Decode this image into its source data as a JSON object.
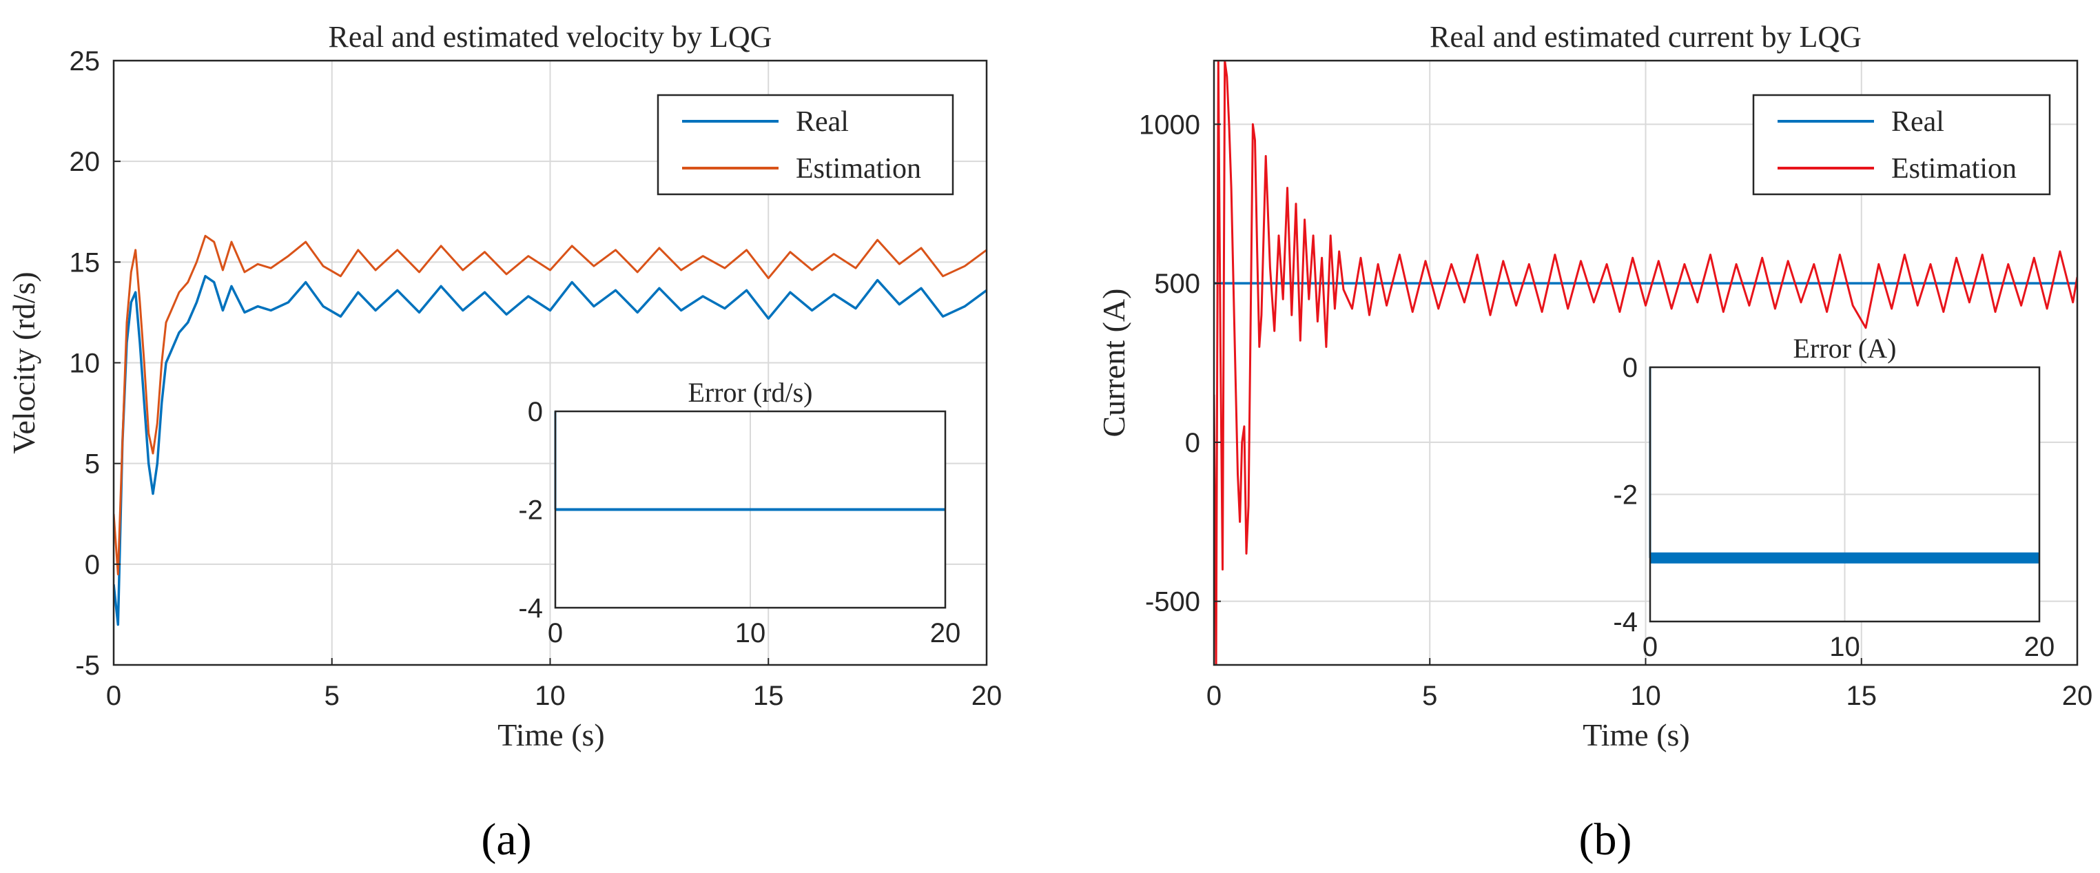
{
  "chart_data": [
    {
      "type": "line",
      "panel_label": "(a)",
      "title": "Real and estimated velocity by LQG",
      "xlabel": "Time (s)",
      "ylabel": "Velocity (rd/s)",
      "xlim": [
        0,
        20
      ],
      "ylim": [
        -5,
        25
      ],
      "xticks": [
        "0",
        "5",
        "10",
        "15",
        "20"
      ],
      "yticks": [
        "-5",
        "0",
        "5",
        "10",
        "15",
        "20",
        "25"
      ],
      "grid": true,
      "legend_position": "top-right",
      "series": [
        {
          "name": "Real",
          "color": "#0072BD",
          "x": [
            0,
            0.1,
            0.2,
            0.3,
            0.4,
            0.5,
            0.6,
            0.7,
            0.8,
            0.9,
            1.0,
            1.1,
            1.2,
            1.3,
            1.5,
            1.7,
            1.9,
            2.1,
            2.3,
            2.5,
            2.7,
            3.0,
            3.3,
            3.6,
            4.0,
            4.4,
            4.8,
            5.2,
            5.6,
            6.0,
            6.5,
            7.0,
            7.5,
            8.0,
            8.5,
            9.0,
            9.5,
            10.0,
            10.5,
            11.0,
            11.5,
            12.0,
            12.5,
            13.0,
            13.5,
            14.0,
            14.5,
            15.0,
            15.5,
            16.0,
            16.5,
            17.0,
            17.5,
            18.0,
            18.5,
            19.0,
            19.5,
            20.0
          ],
          "y": [
            -1,
            -3,
            6,
            11,
            13,
            13.5,
            11,
            8,
            5,
            3.5,
            5,
            8,
            10,
            10.5,
            11.5,
            12,
            13,
            14.3,
            14,
            12.6,
            13.8,
            12.5,
            12.8,
            12.6,
            13,
            14,
            12.8,
            12.3,
            13.5,
            12.6,
            13.6,
            12.5,
            13.8,
            12.6,
            13.5,
            12.4,
            13.3,
            12.6,
            14,
            12.8,
            13.6,
            12.5,
            13.7,
            12.6,
            13.3,
            12.7,
            13.6,
            12.2,
            13.5,
            12.6,
            13.4,
            12.7,
            14.1,
            12.9,
            13.7,
            12.3,
            12.8,
            13.6
          ]
        },
        {
          "name": "Estimation",
          "color": "#D95319",
          "x": [
            0,
            0.1,
            0.2,
            0.3,
            0.4,
            0.5,
            0.6,
            0.7,
            0.8,
            0.9,
            1.0,
            1.1,
            1.2,
            1.3,
            1.5,
            1.7,
            1.9,
            2.1,
            2.3,
            2.5,
            2.7,
            3.0,
            3.3,
            3.6,
            4.0,
            4.4,
            4.8,
            5.2,
            5.6,
            6.0,
            6.5,
            7.0,
            7.5,
            8.0,
            8.5,
            9.0,
            9.5,
            10.0,
            10.5,
            11.0,
            11.5,
            12.0,
            12.5,
            13.0,
            13.5,
            14.0,
            14.5,
            15.0,
            15.5,
            16.0,
            16.5,
            17.0,
            17.5,
            18.0,
            18.5,
            19.0,
            19.5,
            20.0
          ],
          "y": [
            2.5,
            -0.5,
            6,
            12,
            14.5,
            15.6,
            13,
            10,
            6.5,
            5.5,
            7,
            10,
            12,
            12.5,
            13.5,
            14,
            15,
            16.3,
            16,
            14.6,
            16,
            14.5,
            14.9,
            14.7,
            15.3,
            16,
            14.8,
            14.3,
            15.6,
            14.6,
            15.6,
            14.5,
            15.8,
            14.6,
            15.5,
            14.4,
            15.3,
            14.6,
            15.8,
            14.8,
            15.6,
            14.5,
            15.7,
            14.6,
            15.3,
            14.7,
            15.6,
            14.2,
            15.5,
            14.6,
            15.4,
            14.7,
            16.1,
            14.9,
            15.7,
            14.3,
            14.8,
            15.6
          ]
        }
      ],
      "inset": {
        "title": "Error (rd/s)",
        "xlim": [
          0,
          20
        ],
        "ylim": [
          -4,
          0
        ],
        "xticks": [
          "0",
          "10",
          "20"
        ],
        "yticks": [
          "0",
          "-2",
          "-4"
        ],
        "grid": true,
        "series": [
          {
            "name": "Error",
            "color": "#0072BD",
            "x": [
              0,
              20
            ],
            "y": [
              -2,
              -2
            ]
          }
        ]
      }
    },
    {
      "type": "line",
      "panel_label": "(b)",
      "title": "Real and estimated current by LQG",
      "xlabel": "Time (s)",
      "ylabel": "Current (A)",
      "xlim": [
        0,
        20
      ],
      "ylim": [
        -700,
        1200
      ],
      "xticks": [
        "0",
        "5",
        "10",
        "15",
        "20"
      ],
      "yticks": [
        "-500",
        "0",
        "500",
        "1000"
      ],
      "grid": true,
      "legend_position": "top-right",
      "series": [
        {
          "name": "Real",
          "color": "#0072BD",
          "x": [
            0,
            20
          ],
          "y": [
            500,
            500
          ]
        },
        {
          "name": "Estimation",
          "color": "#E8141B",
          "x": [
            0,
            0.05,
            0.1,
            0.15,
            0.2,
            0.25,
            0.3,
            0.35,
            0.4,
            0.45,
            0.5,
            0.55,
            0.6,
            0.65,
            0.7,
            0.75,
            0.8,
            0.85,
            0.9,
            0.95,
            1.0,
            1.05,
            1.1,
            1.2,
            1.3,
            1.4,
            1.5,
            1.6,
            1.7,
            1.8,
            1.9,
            2.0,
            2.1,
            2.2,
            2.3,
            2.4,
            2.5,
            2.6,
            2.7,
            2.8,
            2.9,
            3.0,
            3.2,
            3.4,
            3.6,
            3.8,
            4.0,
            4.3,
            4.6,
            4.9,
            5.2,
            5.5,
            5.8,
            6.1,
            6.4,
            6.7,
            7.0,
            7.3,
            7.6,
            7.9,
            8.2,
            8.5,
            8.8,
            9.1,
            9.4,
            9.7,
            10.0,
            10.3,
            10.6,
            10.9,
            11.2,
            11.5,
            11.8,
            12.1,
            12.4,
            12.7,
            13.0,
            13.3,
            13.6,
            13.9,
            14.2,
            14.5,
            14.8,
            15.1,
            15.4,
            15.7,
            16.0,
            16.3,
            16.6,
            16.9,
            17.2,
            17.5,
            17.8,
            18.1,
            18.4,
            18.7,
            19.0,
            19.3,
            19.6,
            19.9,
            20.0
          ],
          "y": [
            150,
            -700,
            1200,
            300,
            -400,
            1200,
            1150,
            1000,
            800,
            500,
            200,
            -100,
            -250,
            0,
            50,
            -350,
            -200,
            400,
            1000,
            950,
            600,
            300,
            400,
            900,
            550,
            350,
            650,
            450,
            800,
            400,
            750,
            320,
            700,
            450,
            650,
            380,
            580,
            300,
            650,
            420,
            600,
            480,
            420,
            580,
            400,
            560,
            430,
            590,
            410,
            570,
            420,
            560,
            440,
            590,
            400,
            570,
            430,
            560,
            410,
            590,
            420,
            570,
            440,
            560,
            410,
            580,
            430,
            570,
            420,
            560,
            440,
            590,
            410,
            560,
            430,
            580,
            420,
            570,
            440,
            560,
            410,
            590,
            430,
            360,
            560,
            420,
            590,
            430,
            560,
            410,
            580,
            440,
            590,
            410,
            560,
            430,
            580,
            420,
            600,
            440,
            520
          ]
        }
      ],
      "inset": {
        "title": "Error (A)",
        "xlim": [
          0,
          20
        ],
        "ylim": [
          -4,
          0
        ],
        "xticks": [
          "0",
          "10",
          "20"
        ],
        "yticks": [
          "0",
          "-2",
          "-4"
        ],
        "grid": true,
        "series": [
          {
            "name": "Error",
            "color": "#0072BD",
            "x": [
              0,
              20
            ],
            "y": [
              -3,
              -3
            ]
          }
        ]
      }
    }
  ]
}
